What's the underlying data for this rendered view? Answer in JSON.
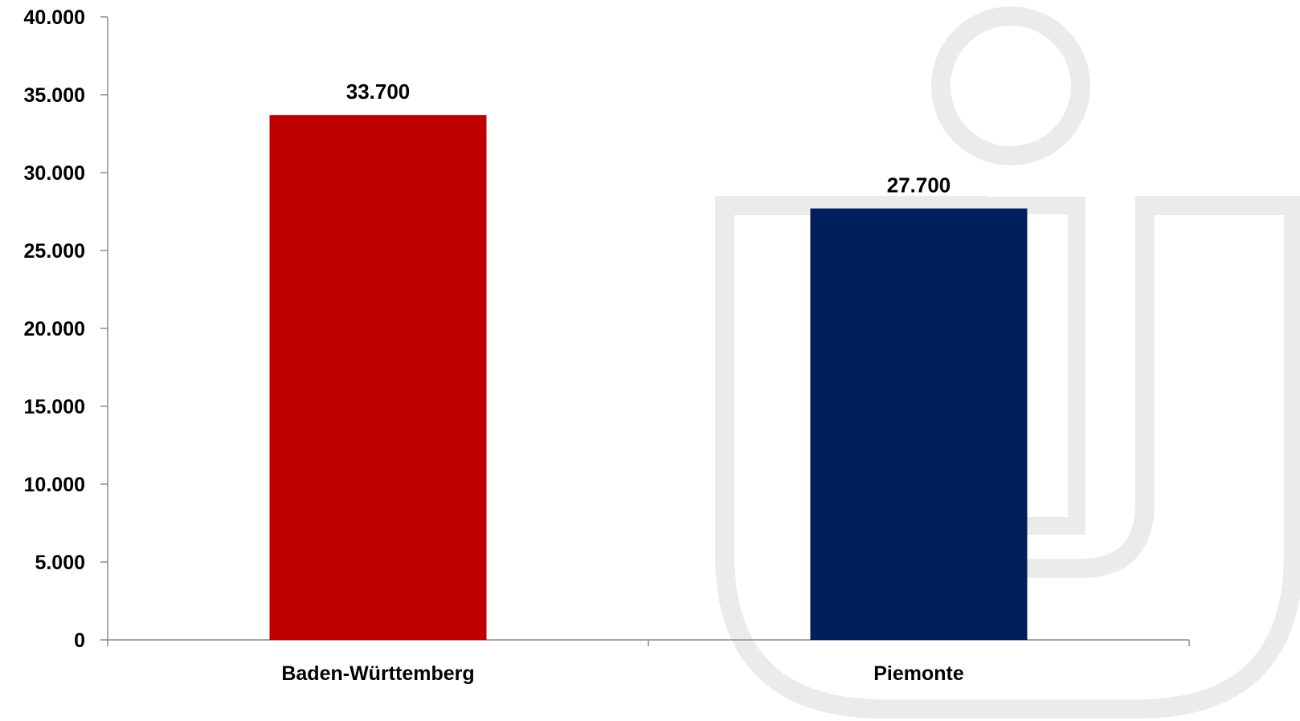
{
  "chart_data": {
    "type": "bar",
    "categories": [
      "Baden-Württemberg",
      "Piemonte"
    ],
    "values": [
      33700,
      27700
    ],
    "value_labels": [
      "33.700",
      "27.700"
    ],
    "bar_colors": [
      "#c00000",
      "#001f5c"
    ],
    "ylim": [
      0,
      40000
    ],
    "yticks": [
      0,
      5000,
      10000,
      15000,
      20000,
      25000,
      30000,
      35000,
      40000
    ],
    "ytick_labels": [
      "0",
      "5.000",
      "10.000",
      "15.000",
      "20.000",
      "25.000",
      "30.000",
      "35.000",
      "40.000"
    ],
    "title": "",
    "xlabel": "",
    "ylabel": "",
    "grid": false,
    "legend": "none"
  },
  "colors": {
    "axis": "#8c8c8c",
    "watermark": "#ebebeb",
    "text": "#000000"
  },
  "watermark_icon": "person-u-logo-icon"
}
